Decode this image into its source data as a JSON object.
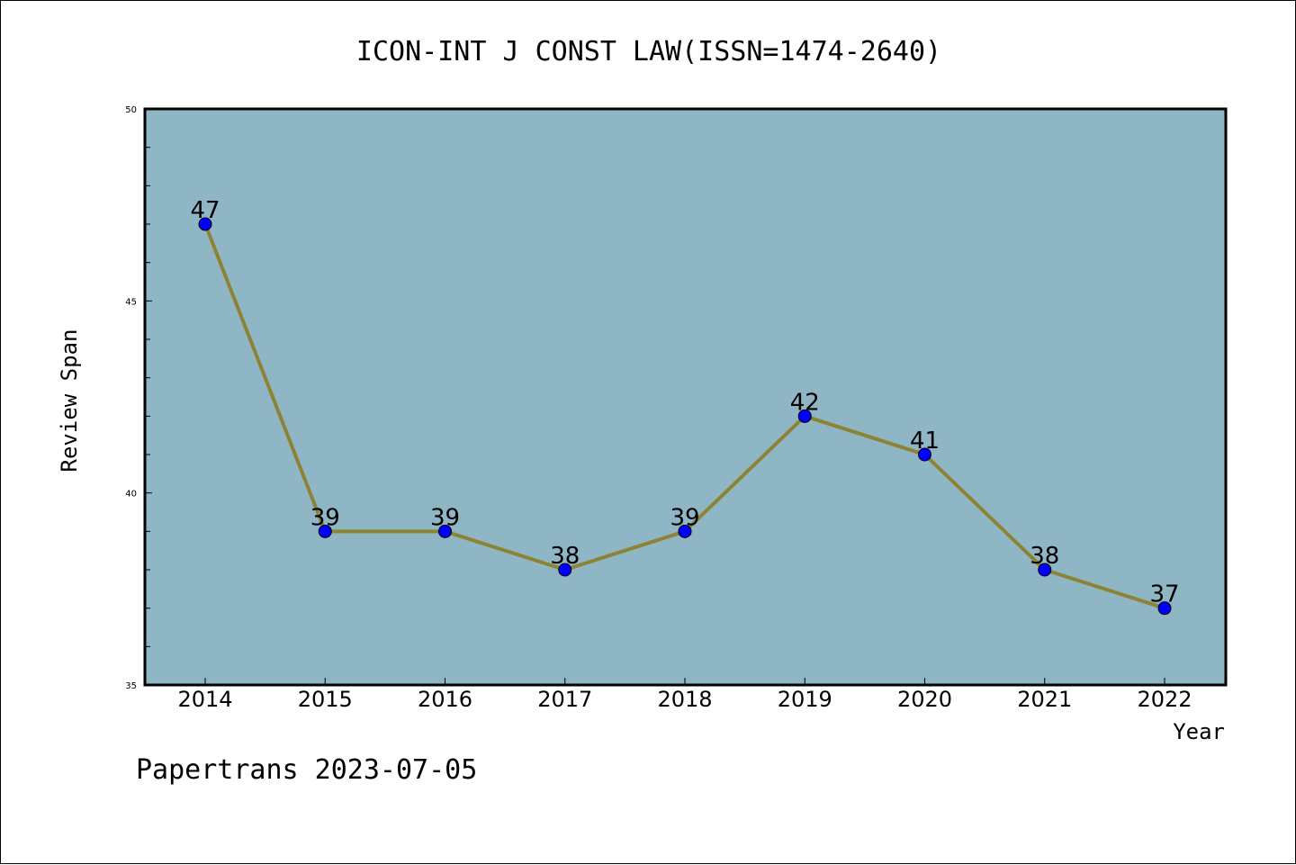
{
  "chart_data": {
    "type": "line",
    "title": "ICON-INT J CONST LAW(ISSN=1474-2640)",
    "xlabel": "Year",
    "ylabel": "Review Span",
    "categories": [
      "2014",
      "2015",
      "2016",
      "2017",
      "2018",
      "2019",
      "2020",
      "2021",
      "2022"
    ],
    "series": [
      {
        "values": [
          47,
          39,
          39,
          38,
          39,
          42,
          41,
          38,
          37
        ],
        "line_color": "#8c8434",
        "marker_color": "#0000ff"
      }
    ],
    "ylim": [
      35,
      50
    ],
    "y_major_ticks": [
      35,
      40,
      45,
      50
    ],
    "y_minor_step": 1,
    "data_labels": true,
    "grid": false,
    "legend": "none",
    "plot_background": "#8fb6c4"
  },
  "footer": {
    "text": "Papertrans 2023-07-05"
  }
}
